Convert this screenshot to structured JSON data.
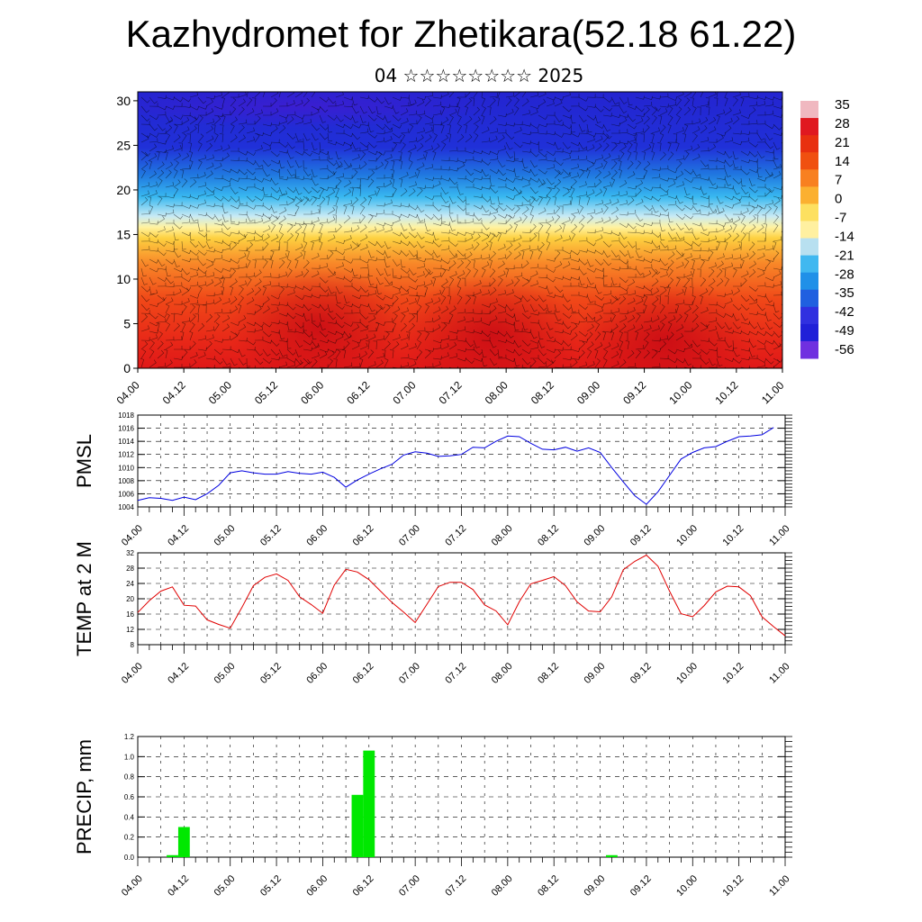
{
  "title": "Kazhydromet for Zhetikara(52.18 61.22)",
  "subtitle": "04 ☆☆☆☆☆☆☆☆ 2025",
  "chart_data": [
    {
      "type": "heatmap",
      "name": "temperature cross-section",
      "x_ticks": [
        "04.00",
        "04.12",
        "05.00",
        "05.12",
        "06.00",
        "06.12",
        "07.00",
        "07.12",
        "08.00",
        "08.12",
        "09.00",
        "09.12",
        "10.00",
        "10.12",
        "11.00"
      ],
      "y_ticks": [
        "0",
        "5",
        "10",
        "15",
        "20",
        "25",
        "30"
      ],
      "ylim": [
        0,
        31
      ],
      "colorbar_labels": [
        "35",
        "28",
        "21",
        "14",
        "7",
        "0",
        "-7",
        "-14",
        "-21",
        "-28",
        "-35",
        "-42",
        "-49",
        "-56"
      ],
      "colorbar_colors": [
        "#f0b8c0",
        "#e01820",
        "#e83010",
        "#f05010",
        "#f88020",
        "#fbb030",
        "#fde060",
        "#fff0a0",
        "#b8e0f0",
        "#40b8f0",
        "#2090e8",
        "#2060e0",
        "#3030e0",
        "#2020d8",
        "#7030e0"
      ],
      "vectors": "wind barbs overlay"
    },
    {
      "type": "line",
      "name": "PMSL",
      "ylabel": "PMSL",
      "color": "#0000e0",
      "x_ticks": [
        "04.00",
        "04.12",
        "05.00",
        "05.12",
        "06.00",
        "06.12",
        "07.00",
        "07.12",
        "08.00",
        "08.12",
        "09.00",
        "09.12",
        "10.00",
        "10.12",
        "11.00"
      ],
      "y_ticks": [
        "1004",
        "1006",
        "1008",
        "1010",
        "1012",
        "1014",
        "1016",
        "1018"
      ],
      "ylim": [
        1004,
        1018
      ],
      "values": [
        1005,
        1005.4,
        1005.3,
        1005,
        1005.5,
        1005.1,
        1006,
        1007.3,
        1009.2,
        1009.5,
        1009.2,
        1009,
        1009,
        1009.4,
        1009.1,
        1009,
        1009.3,
        1008.5,
        1007,
        1008.1,
        1009,
        1009.8,
        1010.5,
        1011.9,
        1012.4,
        1012.2,
        1011.7,
        1011.8,
        1012,
        1013.1,
        1013,
        1014,
        1014.8,
        1014.7,
        1013.7,
        1012.8,
        1012.7,
        1013.1,
        1012.5,
        1013,
        1012.3,
        1010,
        1007.8,
        1005.7,
        1004.4,
        1006.3,
        1008.8,
        1011.3,
        1012.3,
        1013,
        1013.2,
        1014,
        1014.7,
        1014.8,
        1015,
        1016.1
      ]
    },
    {
      "type": "line",
      "name": "TEMP at 2 M",
      "ylabel": "TEMP at 2 M",
      "color": "#e00000",
      "x_ticks": [
        "04.00",
        "04.12",
        "05.00",
        "05.12",
        "06.00",
        "06.12",
        "07.00",
        "07.12",
        "08.00",
        "08.12",
        "09.00",
        "09.12",
        "10.00",
        "10.12",
        "11.00"
      ],
      "y_ticks": [
        "8",
        "12",
        "16",
        "20",
        "24",
        "28",
        "32"
      ],
      "ylim": [
        8,
        32
      ],
      "values": [
        16.4,
        19.5,
        22,
        23.1,
        18.3,
        18.1,
        14.5,
        13.3,
        12.3,
        17.7,
        23.4,
        25.6,
        26.5,
        24.8,
        20.5,
        18.5,
        16.2,
        23.6,
        27.7,
        27,
        25,
        22,
        19,
        16.5,
        13.8,
        18.5,
        23.2,
        24.3,
        24.3,
        22.4,
        18.4,
        16.8,
        13.2,
        19.2,
        23.9,
        24.8,
        25.8,
        23.4,
        19.2,
        16.8,
        16.6,
        20.5,
        27.6,
        29.8,
        31.4,
        28.5,
        22,
        16.1,
        15.3,
        18.2,
        21.8,
        23.3,
        23.1,
        20.8,
        15.3,
        12.7,
        10.3
      ]
    },
    {
      "type": "bar",
      "name": "PRECIP, mm",
      "ylabel": "PRECIP, mm",
      "color": "#00e800",
      "x_ticks": [
        "04.00",
        "04.12",
        "05.00",
        "05.12",
        "06.00",
        "06.12",
        "07.00",
        "07.12",
        "08.00",
        "08.12",
        "09.00",
        "09.12",
        "10.00",
        "10.12",
        "11.00"
      ],
      "y_ticks": [
        "0.0",
        "0.2",
        "0.4",
        "0.6",
        "0.8",
        "1.0",
        "1.2"
      ],
      "ylim": [
        0,
        1.2
      ],
      "bars": [
        {
          "x": 3,
          "value": 0.02
        },
        {
          "x": 4,
          "value": 0.3
        },
        {
          "x": 19,
          "value": 0.62
        },
        {
          "x": 20,
          "value": 1.06
        },
        {
          "x": 41,
          "value": 0.02
        }
      ]
    }
  ]
}
